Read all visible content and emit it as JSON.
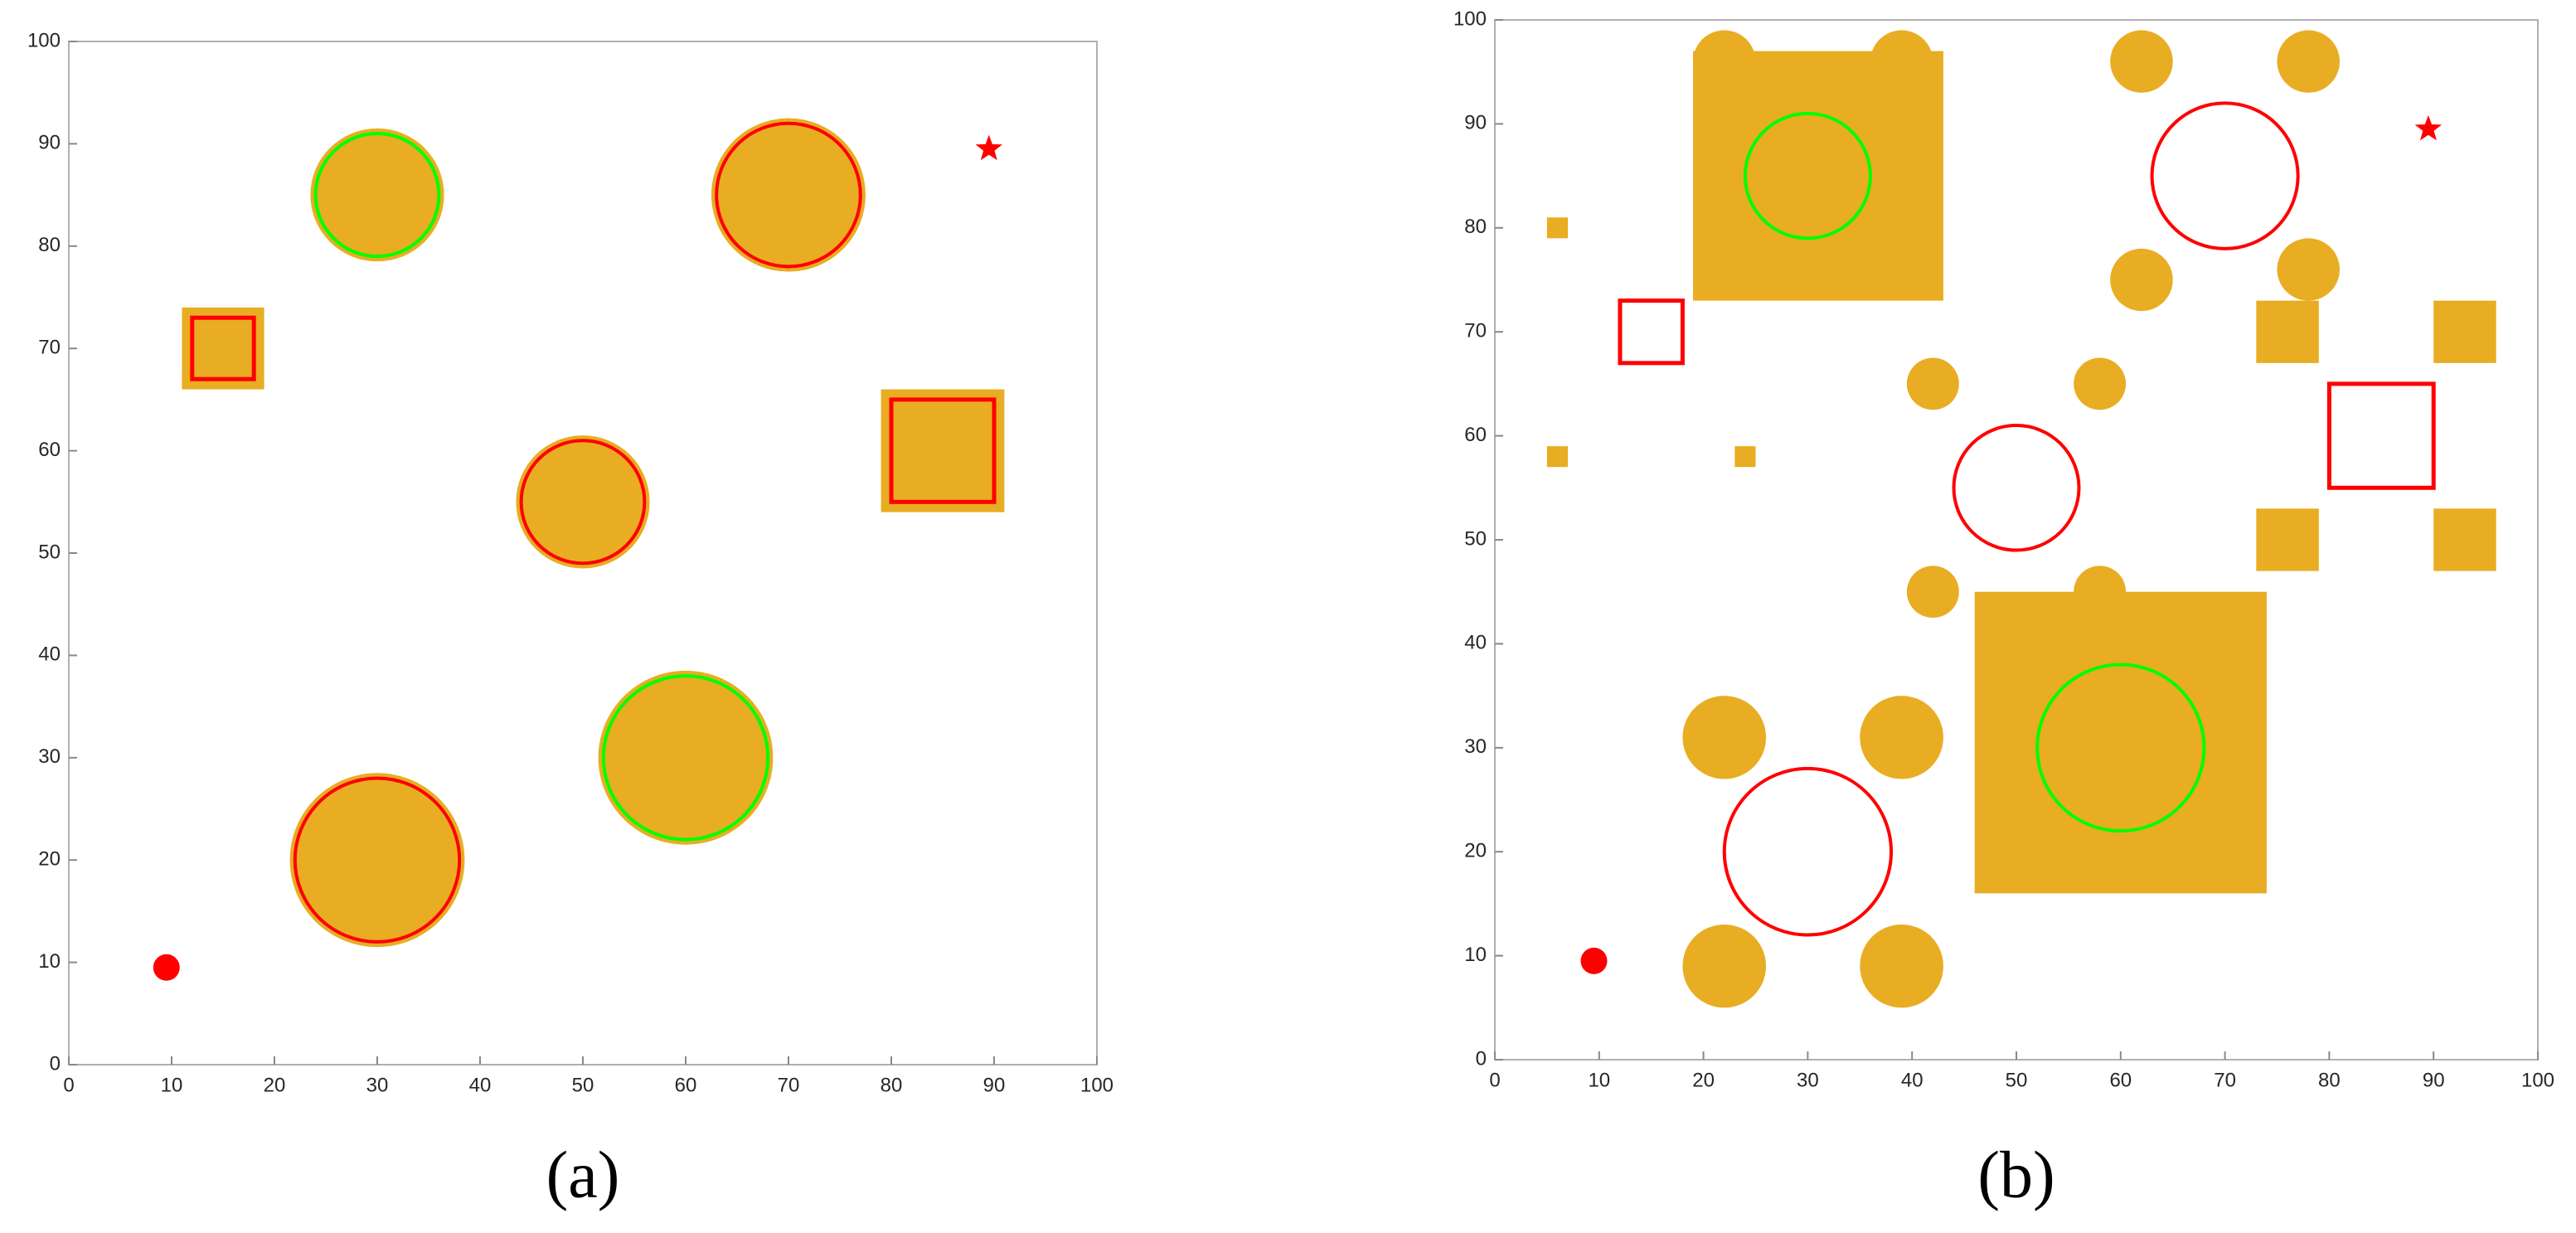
{
  "chart_data": [
    {
      "type": "map",
      "label": "(a)",
      "xlim": [
        0,
        100
      ],
      "ylim": [
        0,
        100
      ],
      "xticks": [
        0,
        10,
        20,
        30,
        40,
        50,
        60,
        70,
        80,
        90,
        100
      ],
      "yticks": [
        0,
        10,
        20,
        30,
        40,
        50,
        60,
        70,
        80,
        90,
        100
      ],
      "region_color": "#e8ad22",
      "regions": [
        {
          "shape": "circle",
          "x": 30,
          "y": 85,
          "r": 6.5
        },
        {
          "shape": "circle",
          "x": 70,
          "y": 85,
          "r": 7.5
        },
        {
          "shape": "circle",
          "x": 50,
          "y": 55,
          "r": 6.5
        },
        {
          "shape": "circle",
          "x": 60,
          "y": 30,
          "r": 8.5
        },
        {
          "shape": "circle",
          "x": 30,
          "y": 20,
          "r": 8.5
        },
        {
          "shape": "rect",
          "x0": 11,
          "y0": 66,
          "x1": 19,
          "y1": 74
        },
        {
          "shape": "rect",
          "x0": 79,
          "y0": 54,
          "x1": 91,
          "y1": 66
        }
      ],
      "circles": [
        {
          "x": 30,
          "y": 85,
          "r": 6,
          "color": "#00ff00"
        },
        {
          "x": 70,
          "y": 85,
          "r": 7,
          "color": "#ff0000"
        },
        {
          "x": 50,
          "y": 55,
          "r": 6,
          "color": "#ff0000"
        },
        {
          "x": 60,
          "y": 30,
          "r": 8,
          "color": "#00ff00"
        },
        {
          "x": 30,
          "y": 20,
          "r": 8,
          "color": "#ff0000"
        }
      ],
      "squares": [
        {
          "x0": 12,
          "y0": 67,
          "x1": 18,
          "y1": 73,
          "color": "#ff0000"
        },
        {
          "x0": 80,
          "y0": 55,
          "x1": 90,
          "y1": 65,
          "color": "#ff0000"
        }
      ],
      "start": {
        "x": 9.5,
        "y": 9.5,
        "color": "#ff0000"
      },
      "goal": {
        "x": 89.5,
        "y": 89.5,
        "color": "#ff0000"
      }
    },
    {
      "type": "map",
      "label": "(b)",
      "xlim": [
        0,
        100
      ],
      "ylim": [
        0,
        100
      ],
      "xticks": [
        0,
        10,
        20,
        30,
        40,
        50,
        60,
        70,
        80,
        90,
        100
      ],
      "yticks": [
        0,
        10,
        20,
        30,
        40,
        50,
        60,
        70,
        80,
        90,
        100
      ],
      "region_color": "#e8ad22",
      "regions": [
        {
          "shape": "rect",
          "x0": 19,
          "y0": 73,
          "x1": 43,
          "y1": 97
        },
        {
          "shape": "circle",
          "x": 22,
          "y": 96,
          "r": 3
        },
        {
          "shape": "circle",
          "x": 39,
          "y": 96,
          "r": 3
        },
        {
          "shape": "circle",
          "x": 62,
          "y": 96,
          "r": 3
        },
        {
          "shape": "circle",
          "x": 78,
          "y": 96,
          "r": 3
        },
        {
          "shape": "circle",
          "x": 62,
          "y": 75,
          "r": 3
        },
        {
          "shape": "circle",
          "x": 78,
          "y": 76,
          "r": 3
        },
        {
          "shape": "rect",
          "x0": 5,
          "y0": 79,
          "x1": 7,
          "y1": 81
        },
        {
          "shape": "rect",
          "x0": 5,
          "y0": 57,
          "x1": 7,
          "y1": 59
        },
        {
          "shape": "rect",
          "x0": 23,
          "y0": 57,
          "x1": 25,
          "y1": 59
        },
        {
          "shape": "rect",
          "x0": 73,
          "y0": 67,
          "x1": 79,
          "y1": 73
        },
        {
          "shape": "rect",
          "x0": 90,
          "y0": 67,
          "x1": 96,
          "y1": 73
        },
        {
          "shape": "rect",
          "x0": 73,
          "y0": 47,
          "x1": 79,
          "y1": 53
        },
        {
          "shape": "rect",
          "x0": 90,
          "y0": 47,
          "x1": 96,
          "y1": 53
        },
        {
          "shape": "circle",
          "x": 42,
          "y": 65,
          "r": 2.5
        },
        {
          "shape": "circle",
          "x": 58,
          "y": 65,
          "r": 2.5
        },
        {
          "shape": "circle",
          "x": 42,
          "y": 45,
          "r": 2.5
        },
        {
          "shape": "circle",
          "x": 58,
          "y": 45,
          "r": 2.5
        },
        {
          "shape": "rect",
          "x0": 46,
          "y0": 16,
          "x1": 74,
          "y1": 45
        },
        {
          "shape": "circle",
          "x": 22,
          "y": 31,
          "r": 4
        },
        {
          "shape": "circle",
          "x": 39,
          "y": 31,
          "r": 4
        },
        {
          "shape": "circle",
          "x": 22,
          "y": 9,
          "r": 4
        },
        {
          "shape": "circle",
          "x": 39,
          "y": 9,
          "r": 4
        }
      ],
      "circles": [
        {
          "x": 30,
          "y": 85,
          "r": 6,
          "color": "#00ff00"
        },
        {
          "x": 70,
          "y": 85,
          "r": 7,
          "color": "#ff0000"
        },
        {
          "x": 50,
          "y": 55,
          "r": 6,
          "color": "#ff0000"
        },
        {
          "x": 60,
          "y": 30,
          "r": 8,
          "color": "#00ff00"
        },
        {
          "x": 30,
          "y": 20,
          "r": 8,
          "color": "#ff0000"
        }
      ],
      "squares": [
        {
          "x0": 12,
          "y0": 67,
          "x1": 18,
          "y1": 73,
          "color": "#ff0000"
        },
        {
          "x0": 80,
          "y0": 55,
          "x1": 90,
          "y1": 65,
          "color": "#ff0000"
        }
      ],
      "start": {
        "x": 9.5,
        "y": 9.5,
        "color": "#ff0000"
      },
      "goal": {
        "x": 89.5,
        "y": 89.5,
        "color": "#ff0000"
      }
    }
  ]
}
